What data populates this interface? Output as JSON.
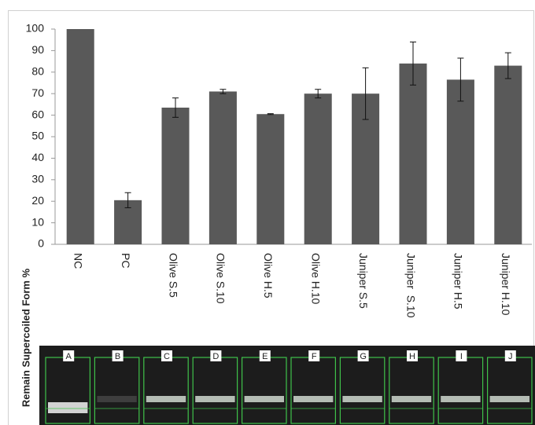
{
  "chart_data": {
    "type": "bar",
    "y_label": "Remain Supercoiled Form %",
    "categories": [
      "NC",
      "PC",
      "Olive S.5",
      "Olive S.10",
      "Olive H.5",
      "Olive H.10",
      "Juniper S.5",
      "Juniper  S.10",
      "Juniper H.5",
      "Juniper H.10"
    ],
    "values": [
      100,
      20.5,
      63.5,
      71,
      60.5,
      70,
      70,
      84,
      76.5,
      83
    ],
    "errors": [
      0,
      3.5,
      4.5,
      1,
      0.2,
      2,
      12,
      10,
      10,
      6
    ],
    "color": "#595959",
    "ylim": [
      0,
      100
    ],
    "yticks": [
      0,
      10,
      20,
      30,
      40,
      50,
      60,
      70,
      80,
      90,
      100
    ],
    "grid": false
  },
  "gel": {
    "lanes": [
      "A",
      "B",
      "C",
      "D",
      "E",
      "F",
      "G",
      "H",
      "I",
      "J"
    ]
  }
}
